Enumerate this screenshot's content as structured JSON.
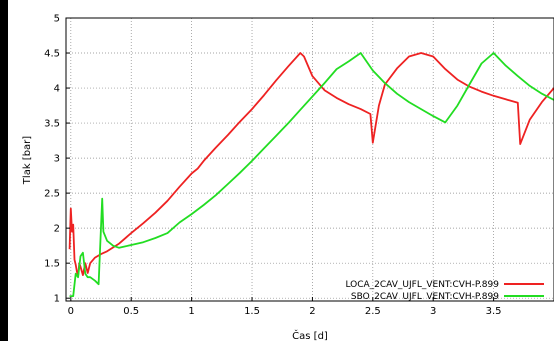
{
  "chart_data": {
    "type": "line",
    "title": "",
    "xlabel": "Čas [d]",
    "ylabel": "Tlak [bar]",
    "xlim": [
      -0.04,
      4.0
    ],
    "ylim": [
      0.96,
      5.0
    ],
    "xticks": [
      "0",
      "0.5",
      "1",
      "1.5",
      "2",
      "2.5",
      "3",
      "3.5"
    ],
    "yticks": [
      "1",
      "1.5",
      "2",
      "2.5",
      "3",
      "3.5",
      "4",
      "4.5",
      "5"
    ],
    "grid": true,
    "legend_position": "bottom-right",
    "series": [
      {
        "name": "LOCA_2CAV_UJFL_VENT:CVH-P.899",
        "color": "#ee2222",
        "x": [
          -0.01,
          0.0,
          0.01,
          0.02,
          0.03,
          0.04,
          0.05,
          0.06,
          0.07,
          0.08,
          0.1,
          0.12,
          0.14,
          0.16,
          0.2,
          0.25,
          0.3,
          0.4,
          0.5,
          0.6,
          0.7,
          0.8,
          0.9,
          1.0,
          1.05,
          1.1,
          1.2,
          1.3,
          1.4,
          1.5,
          1.6,
          1.7,
          1.8,
          1.9,
          1.93,
          2.0,
          2.1,
          2.2,
          2.3,
          2.4,
          2.48,
          2.5,
          2.55,
          2.6,
          2.7,
          2.8,
          2.9,
          3.0,
          3.1,
          3.2,
          3.3,
          3.4,
          3.5,
          3.6,
          3.7,
          3.72,
          3.8,
          3.9,
          4.0
        ],
        "y": [
          1.7,
          2.28,
          1.95,
          2.05,
          1.55,
          1.48,
          1.38,
          1.32,
          1.5,
          1.45,
          1.33,
          1.5,
          1.36,
          1.5,
          1.58,
          1.63,
          1.67,
          1.78,
          1.93,
          2.07,
          2.22,
          2.39,
          2.59,
          2.78,
          2.85,
          2.96,
          3.15,
          3.33,
          3.52,
          3.7,
          3.9,
          4.11,
          4.31,
          4.5,
          4.45,
          4.17,
          3.97,
          3.86,
          3.77,
          3.7,
          3.63,
          3.22,
          3.75,
          4.05,
          4.28,
          4.45,
          4.5,
          4.45,
          4.27,
          4.12,
          4.02,
          3.95,
          3.89,
          3.84,
          3.79,
          3.2,
          3.55,
          3.8,
          4.0
        ]
      },
      {
        "name": "SBO_2CAV_UJFL_VENT:CVH-P.899",
        "color": "#22dd22",
        "x": [
          -0.01,
          0.02,
          0.04,
          0.06,
          0.08,
          0.1,
          0.12,
          0.14,
          0.16,
          0.2,
          0.23,
          0.26,
          0.27,
          0.3,
          0.35,
          0.4,
          0.45,
          0.5,
          0.6,
          0.7,
          0.8,
          0.9,
          1.0,
          1.1,
          1.2,
          1.3,
          1.4,
          1.5,
          1.6,
          1.7,
          1.8,
          1.9,
          2.0,
          2.1,
          2.2,
          2.3,
          2.4,
          2.5,
          2.6,
          2.7,
          2.8,
          2.9,
          3.0,
          3.1,
          3.2,
          3.3,
          3.4,
          3.5,
          3.6,
          3.7,
          3.8,
          3.9,
          4.0
        ],
        "y": [
          1.03,
          1.03,
          1.35,
          1.3,
          1.6,
          1.65,
          1.35,
          1.3,
          1.3,
          1.25,
          1.2,
          2.42,
          1.95,
          1.82,
          1.75,
          1.72,
          1.74,
          1.76,
          1.8,
          1.86,
          1.93,
          2.08,
          2.2,
          2.33,
          2.47,
          2.63,
          2.79,
          2.96,
          3.14,
          3.32,
          3.5,
          3.69,
          3.88,
          4.07,
          4.27,
          4.38,
          4.5,
          4.25,
          4.07,
          3.92,
          3.8,
          3.7,
          3.6,
          3.51,
          3.75,
          4.05,
          4.35,
          4.5,
          4.32,
          4.17,
          4.03,
          3.92,
          3.83
        ]
      }
    ]
  }
}
